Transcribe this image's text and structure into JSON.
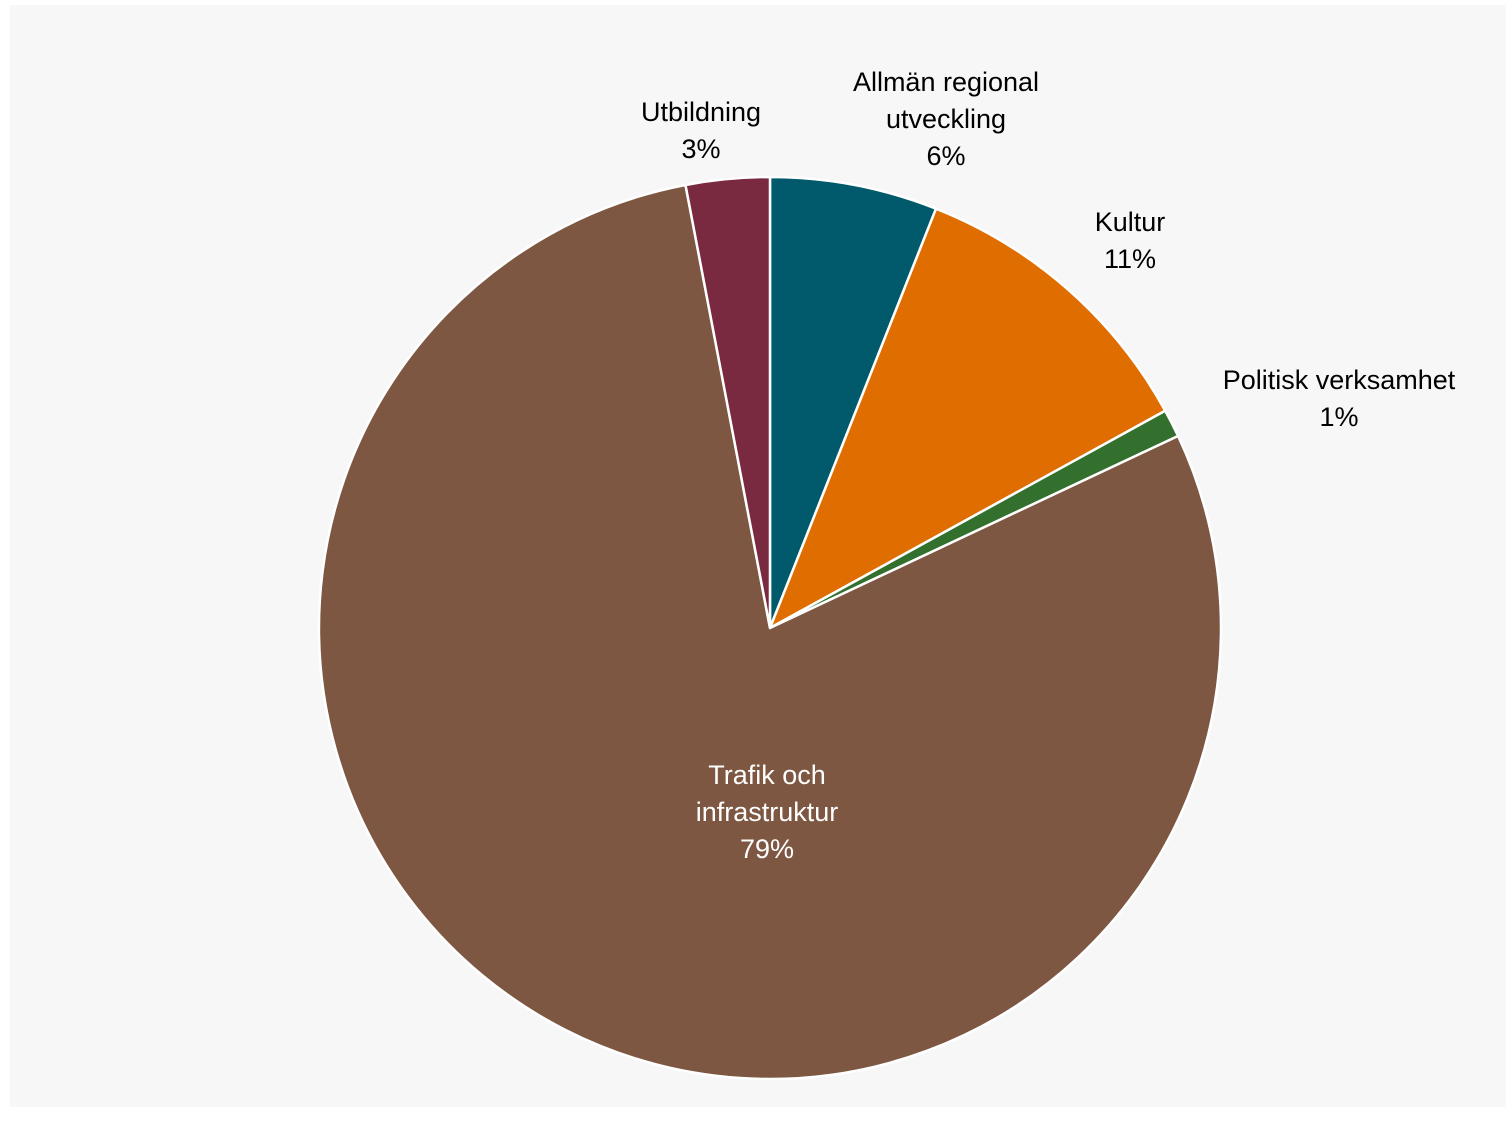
{
  "chart_data": {
    "type": "pie",
    "start": "12 o'clock",
    "direction": "clockwise",
    "series": [
      {
        "slices": [
          {
            "name": "Allmän regional utveckling",
            "label_lines": [
              "Allmän regional",
              "utveckling"
            ],
            "pct_label": "6%",
            "value": 6,
            "color": "#005a6b"
          },
          {
            "name": "Kultur",
            "label_lines": [
              "Kultur"
            ],
            "pct_label": "11%",
            "value": 11,
            "color": "#e06d00"
          },
          {
            "name": "Politisk verksamhet",
            "label_lines": [
              "Politisk verksamhet"
            ],
            "pct_label": "1%",
            "value": 1,
            "color": "#33702e"
          },
          {
            "name": "Trafik och infrastruktur",
            "label_lines": [
              "Trafik och",
              "infrastruktur"
            ],
            "pct_label": "79%",
            "value": 79,
            "color": "#7d5741"
          },
          {
            "name": "Utbildning",
            "label_lines": [
              "Utbildning"
            ],
            "pct_label": "3%",
            "value": 3,
            "color": "#7a2a40"
          }
        ]
      }
    ],
    "data_labels": "category name and percentage",
    "legend": "none",
    "background_color": "#f7f7f7"
  }
}
